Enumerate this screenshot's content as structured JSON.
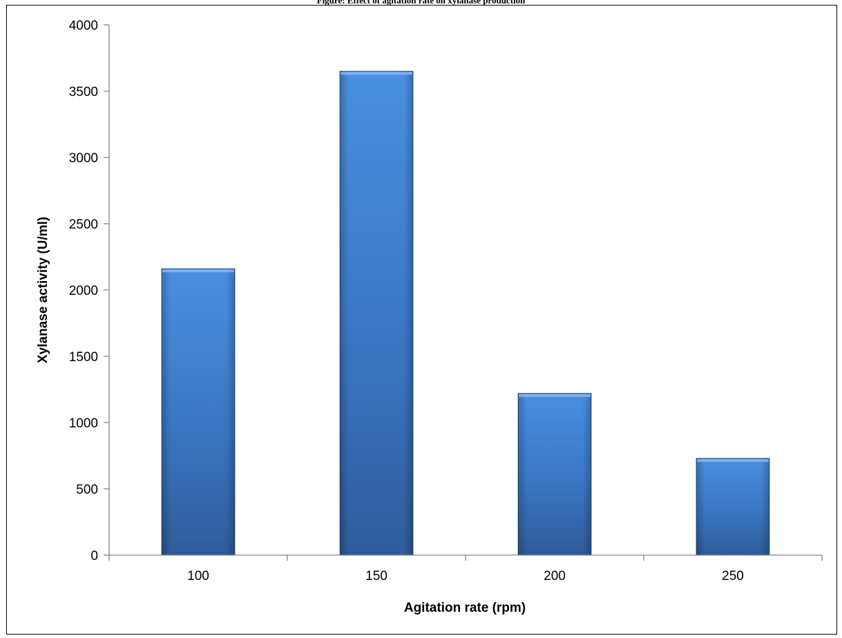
{
  "chart_data": {
    "type": "bar",
    "title": "Figure: Effect of agitation rate on xylanase production",
    "xlabel": "Agitation rate (rpm)",
    "ylabel": "Xylanase activity (U/ml)",
    "categories": [
      "100",
      "150",
      "200",
      "250"
    ],
    "values": [
      2160,
      3650,
      1220,
      730
    ],
    "ylim": [
      0,
      4000
    ],
    "yticks": [
      0,
      500,
      1000,
      1500,
      2000,
      2500,
      3000,
      3500,
      4000
    ],
    "grid": false,
    "legend": "none",
    "colors": {
      "bar_light": "#4a8fe0",
      "bar_mid": "#3a76c4",
      "bar_dark": "#2e5c9a",
      "bar_edge": "#24497a",
      "axis": "#868686"
    }
  }
}
